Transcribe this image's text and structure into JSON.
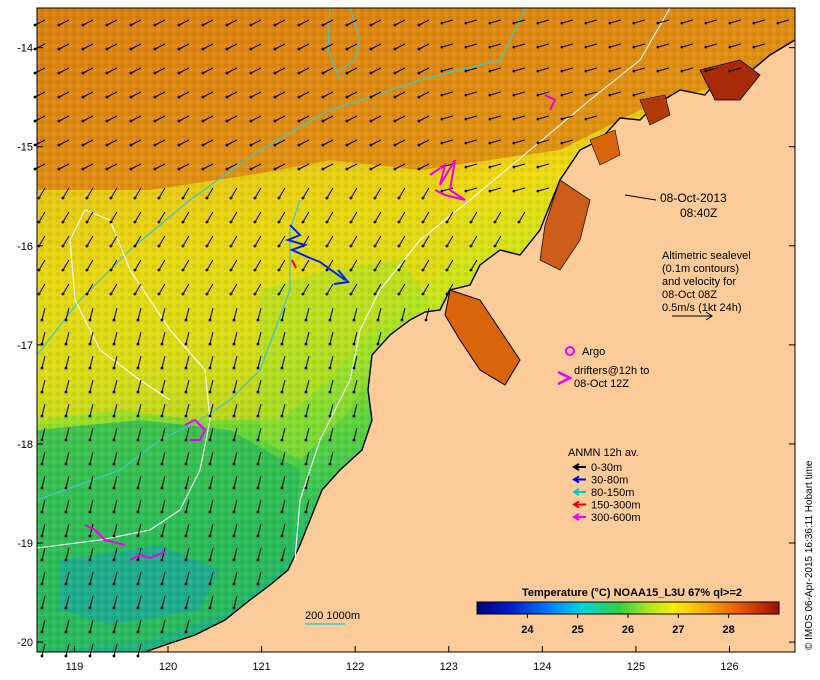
{
  "map": {
    "lon_range": [
      118.6,
      126.7
    ],
    "lat_range": [
      -20.1,
      -13.6
    ],
    "x_ticks": [
      "119",
      "120",
      "121",
      "122",
      "123",
      "124",
      "125",
      "126"
    ],
    "y_ticks": [
      "-14",
      "-15",
      "-16",
      "-17",
      "-18",
      "-19",
      "-20"
    ]
  },
  "annotations": {
    "date": "08-Oct-2013",
    "time": "08:40Z",
    "altimetry_lines": [
      "Altimetric sealevel",
      "(0.1m contours)",
      "and velocity for",
      "08-Oct 08Z",
      "0.5m/s (1kt 24h)"
    ],
    "argo_label": "Argo",
    "drifters_lines": [
      "drifters@12h to",
      "08-Oct 12Z"
    ],
    "depth_scale_label": "200  1000m"
  },
  "legend": {
    "title": "ANMN 12h av.",
    "items": [
      {
        "label": "0-30m",
        "color": "#000000"
      },
      {
        "label": "30-80m",
        "color": "#0000dd"
      },
      {
        "label": "80-150m",
        "color": "#00cccc"
      },
      {
        "label": "150-300m",
        "color": "#ee0000"
      },
      {
        "label": "300-600m",
        "color": "#ee00ee"
      }
    ]
  },
  "colorbar": {
    "title": "Temperature (°C) NOAA15_L3U 67% ql>=2",
    "ticks": [
      "24",
      "25",
      "26",
      "27",
      "28"
    ],
    "range": [
      23,
      29
    ]
  },
  "credit": "© IMOS 06-Apr-2015 16:36:11 Hobart time",
  "colors": {
    "land": "#fccb9a",
    "warm_sea": "#e08a10",
    "mid_sea": "#e2e010",
    "cool_sea": "#28c24a",
    "bathymetry_200m": "#40c8c8",
    "ssh_contour": "#ffffff",
    "argo": "#ee00ee"
  }
}
